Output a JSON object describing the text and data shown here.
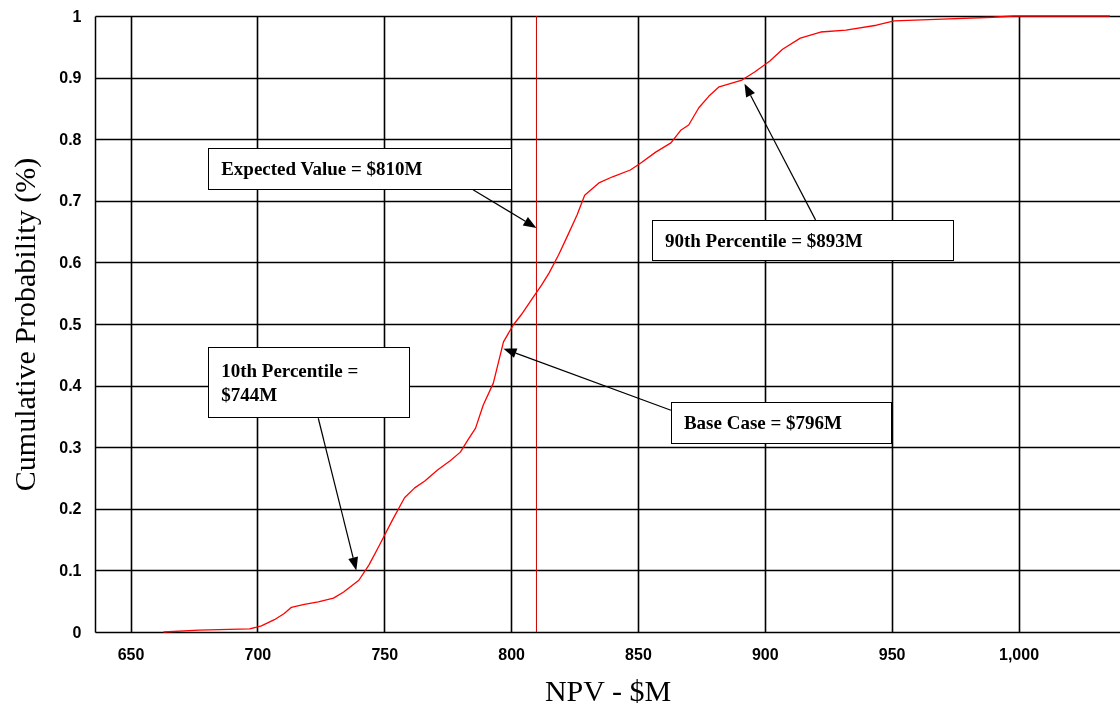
{
  "chart_data": {
    "type": "line",
    "xlabel": "NPV - $M",
    "ylabel": "Cumulative Probability (%)",
    "x": [
      663,
      677,
      697,
      701.6,
      706.7,
      710.6,
      713.4,
      718.5,
      724,
      730,
      734,
      740,
      744,
      748,
      753,
      758,
      762,
      766,
      771,
      776,
      780,
      783,
      786,
      789,
      793,
      797,
      800.8,
      804,
      808,
      812,
      815,
      818.7,
      822,
      826,
      829,
      834.6,
      840,
      847,
      851,
      857,
      863,
      867,
      870,
      874,
      878,
      882,
      891,
      896,
      902,
      907,
      914,
      922,
      932,
      944,
      951,
      970,
      990,
      998,
      1036
    ],
    "series": [
      {
        "color": "#ff0000",
        "values": [
          0,
          0.003,
          0.005,
          0.01,
          0.02,
          0.03,
          0.04,
          0.045,
          0.049,
          0.055,
          0.065,
          0.084,
          0.109,
          0.14,
          0.18,
          0.218,
          0.234,
          0.245,
          0.263,
          0.278,
          0.292,
          0.312,
          0.331,
          0.368,
          0.404,
          0.471,
          0.498,
          0.515,
          0.539,
          0.563,
          0.583,
          0.612,
          0.641,
          0.677,
          0.709,
          0.729,
          0.739,
          0.75,
          0.761,
          0.779,
          0.794,
          0.815,
          0.823,
          0.851,
          0.87,
          0.885,
          0.896,
          0.909,
          0.927,
          0.946,
          0.964,
          0.974,
          0.977,
          0.985,
          0.992,
          0.995,
          0.998,
          1,
          1
        ]
      }
    ],
    "xlim": [
      636,
      1040
    ],
    "ylim": [
      0,
      1
    ],
    "xticks": [
      650,
      700,
      750,
      800,
      850,
      900,
      950,
      {
        "value": 1000,
        "label": "1,000"
      }
    ],
    "yticks": [
      0,
      0.1,
      0.2,
      0.3,
      0.4,
      0.5,
      0.6,
      0.7,
      0.8,
      0.9,
      1
    ],
    "grid": true,
    "marker": "none",
    "ref_lines": [
      {
        "axis": "x",
        "value": 810,
        "color": "#cc0000"
      }
    ],
    "annotations": [
      "Expected Value = $810M",
      "90th Percentile = $893M",
      "Base Case = $796M",
      "10th Percentile =\n$744M"
    ]
  }
}
